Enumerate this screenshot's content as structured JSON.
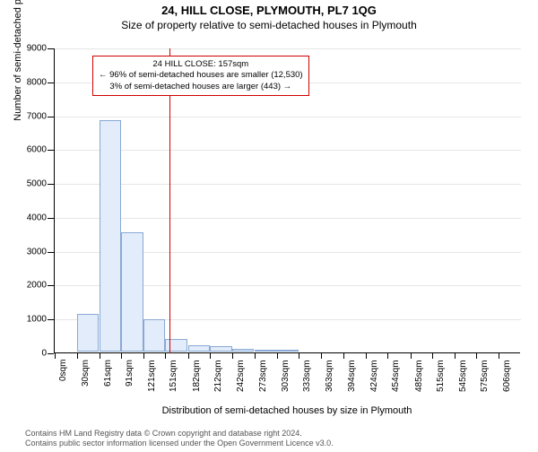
{
  "title": "24, HILL CLOSE, PLYMOUTH, PL7 1QG",
  "subtitle": "Size of property relative to semi-detached houses in Plymouth",
  "ylabel": "Number of semi-detached properties",
  "xlabel": "Distribution of semi-detached houses by size in Plymouth",
  "ylim": [
    0,
    9000
  ],
  "ytick_step": 1000,
  "yticks": [
    0,
    1000,
    2000,
    3000,
    4000,
    5000,
    6000,
    7000,
    8000,
    9000
  ],
  "bar_fill": "#e2ecfa",
  "bar_stroke": "#88a9d4",
  "grid_color": "#e6e6e6",
  "marker_color": "#d00000",
  "background_color": "#ffffff",
  "xcats": [
    "0sqm",
    "30sqm",
    "61sqm",
    "91sqm",
    "121sqm",
    "151sqm",
    "182sqm",
    "212sqm",
    "242sqm",
    "273sqm",
    "303sqm",
    "333sqm",
    "363sqm",
    "394sqm",
    "424sqm",
    "454sqm",
    "485sqm",
    "515sqm",
    "545sqm",
    "575sqm",
    "606sqm"
  ],
  "xvals": [
    0,
    30,
    61,
    91,
    121,
    151,
    182,
    212,
    242,
    273,
    303,
    333,
    363,
    394,
    424,
    454,
    485,
    515,
    545,
    575,
    606
  ],
  "values": [
    0,
    1100,
    6820,
    3520,
    950,
    370,
    190,
    150,
    90,
    60,
    40,
    0,
    0,
    0,
    0,
    0,
    0,
    0,
    0,
    0,
    0
  ],
  "xmax": 636,
  "bar_width_units": 30,
  "marker_x": 157,
  "info": {
    "line1": "24 HILL CLOSE: 157sqm",
    "line2": "← 96% of semi-detached houses are smaller (12,530)",
    "line3": "3% of semi-detached houses are larger (443) →"
  },
  "footer": {
    "line1": "Contains HM Land Registry data © Crown copyright and database right 2024.",
    "line2": "Contains public sector information licensed under the Open Government Licence v3.0."
  }
}
